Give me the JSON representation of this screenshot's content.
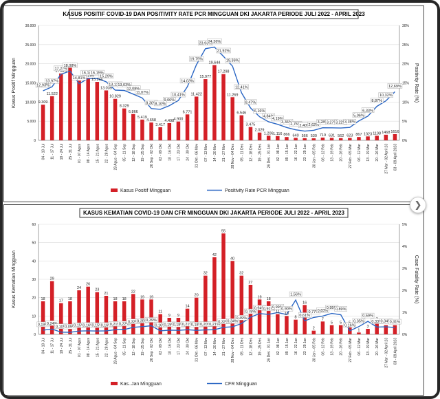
{
  "theme": {
    "bar_color": "#d42027",
    "line_color": "#2a66c4",
    "box_bg": "#ffffff"
  },
  "chart_data": [
    {
      "type": "bar",
      "title": "KASUS POSITIF COVID-19 DAN POSITIVITY RATE PCR MINGGUAN DKI JAKARTA PERIODE  JULI 2022 - APRIL 2023",
      "ylabel": "Kasus Positif Mingguan",
      "y2label": "Positivity Rate (%)",
      "ylim": [
        0,
        30000
      ],
      "y2lim": [
        0,
        30
      ],
      "yticks": [
        "0",
        "5.000",
        "10.000",
        "15.000",
        "20.000",
        "25.000",
        "30.000"
      ],
      "y2ticks": [
        "0%",
        "5%",
        "10%",
        "15%",
        "20%",
        "25%",
        "30%"
      ],
      "legend_position": "bottom",
      "categories": [
        "04 - 10 Jul",
        "11 - 17 Jul",
        "18 - 24 Jul",
        "25 - 31 Jul",
        "01 - 07 Agus",
        "08 - 14 Agus",
        "15 - 21 Agus",
        "22 - 28 Agus",
        "29 Agus - 04 Sep",
        "05 - 11 Sep",
        "12 - 18 Sep",
        "19 - 25 Sep",
        "26 Sep - 02 Okt",
        "03 - 09 Okt",
        "10 - 16 Okt",
        "17 - 23 Okt",
        "24 - 30 Okt",
        "31 Okt - 06 Nov",
        "07 - 13 Nov",
        "14 - 20 Nov",
        "21 - 27 Nov",
        "28 Nov - 04 Des",
        "05 - 11 Des",
        "12 - 18 Des",
        "19 - 25 Des",
        "26 Des - 01 Jan",
        "02 - 08 Jan",
        "09 - 15 Jan",
        "16 - 22 Jan",
        "23 - 29 Jan",
        "30 Jan - 05 Feb",
        "06 - 12 Feb",
        "13 - 19 Feb",
        "20 - 26 Feb",
        "27 Feb - 05 Mar",
        "06 - 12 Mar",
        "13 - 19 Mar",
        "20 - 26 Mar",
        "27 Mar - 02 April 23",
        "03 - 09 April 2023"
      ],
      "series": [
        {
          "name": "Kasus Positif Mingguan",
          "kind": "bar",
          "values": [
            9309,
            11522,
            17470,
            19192,
            15574,
            16294,
            15266,
            13035,
            10829,
            8329,
            6866,
            5419,
            4658,
            3417,
            4498,
            4900,
            6771,
            11422,
            15977,
            19644,
            17298,
            11269,
            6546,
            3475,
            2029,
            1206,
            1116,
            866,
            640,
            566,
            530,
            719,
            631,
            562,
            623,
            867,
            1023,
            1198,
            1468,
            1616
          ],
          "labels": [
            "9.309",
            "11.522",
            "17.470",
            "19.192",
            "15.574",
            "16.294",
            "15.266",
            "13.035",
            "10.829",
            "8.329",
            "6.866",
            "5.419",
            "4.658",
            "3.417",
            "4.498",
            "4.900",
            "6.771",
            "11.422",
            "15.977",
            "19.644",
            "17.298",
            "11.269",
            "6.546",
            "3.475",
            "2.029",
            "1.206",
            "1.116",
            "866",
            "640",
            "566",
            "530",
            "719",
            "631",
            "562",
            "623",
            "867",
            "1023",
            "1198",
            "1468",
            "1616"
          ]
        },
        {
          "name": "Positivity Rate PCR Mingguan",
          "kind": "line",
          "axis": "y2",
          "values": [
            12.93,
            13.97,
            17.27,
            18.08,
            14.81,
            16.14,
            16.15,
            15.29,
            13.12,
            13.03,
            12.08,
            11.07,
            8.3,
            8.1,
            9.06,
            10.41,
            14.03,
            19.75,
            23.93,
            24.36,
            21.92,
            19.36,
            12.41,
            8.47,
            6.16,
            4.84,
            4.19,
            3.36,
            2.75,
            2.4,
            2.62,
            3.28,
            3.27,
            3.22,
            3.38,
            5.06,
            6.33,
            8.87,
            10.32,
            12.69
          ],
          "labels": [
            "12,93%",
            "13,97%",
            "17,27%",
            "18,08%",
            "14,81%",
            "16,14%",
            "16,15%",
            "15,29%",
            "13,12%",
            "13,03%",
            "12,08%",
            "11,07%",
            "8,30%",
            "8,10%",
            "9,06%",
            "10,41%",
            "14,03%",
            "19,75%",
            "23,93%",
            "24,36%",
            "21,92%",
            "19,36%",
            "12,41%",
            "8,47%",
            "6,16%",
            "4,84%",
            "4,19%",
            "3,36%",
            "2,75%",
            "2,40%",
            "2,62%",
            "3,28%",
            "3,27%",
            "3,22%",
            "3,38%",
            "5,06%",
            "6,33%",
            "8,87%",
            "10,32%",
            "12,69%"
          ]
        }
      ]
    },
    {
      "type": "bar",
      "title": "KASUS KEMATIAN COVID-19 DAN CFR MINGGUAN DKI JAKARTA PERIODE  JULI 2022 - APRIL 2023",
      "ylabel": "Kasus Kematian Mingguan",
      "y2label": "Case Fatality Rate (%)",
      "ylim": [
        0,
        60
      ],
      "y2lim": [
        0,
        5
      ],
      "yticks": [
        "0",
        "10",
        "20",
        "30",
        "40",
        "50",
        "60"
      ],
      "y2ticks": [
        "0%",
        "1%",
        "2%",
        "3%",
        "4%",
        "5%"
      ],
      "legend_position": "bottom",
      "categories": [
        "04 - 10 Jul",
        "11 - 17 Jul",
        "18 - 24 Jul",
        "25 - 31 Jul",
        "01 - 07 Agus",
        "08 - 14 Agus",
        "15 - 21 Agus",
        "22 - 28 Agus",
        "29 Agus - 04 Sep",
        "05 - 11 Sep",
        "12 - 18 Sep",
        "19 - 25 Sep",
        "26 Sep - 02 Okt",
        "03 - 09 Okt",
        "10 - 16 Okt",
        "17 - 23 Okt",
        "24 - 30 Okt",
        "31 Okt - 06 Nov",
        "07 - 13 Nov",
        "14 - 20 Nov",
        "21 - 27 Nov",
        "28 Nov - 04 Des",
        "05 - 11 Des",
        "12 - 18 Des",
        "19 - 25 Des",
        "26 Des - 01 Jan",
        "02 - 08 Jan",
        "09 - 15 Jan",
        "16 - 22 Jan",
        "23 - 29 Jan",
        "30 Jan - 05 Feb",
        "06 - 12 Feb",
        "13 - 19 Feb",
        "20 - 26 Feb",
        "27 Feb - 05 Mar",
        "06 - 12 Mar",
        "13 - 19 Mar",
        "20 - 26 Mar",
        "27 Mar - 02 April 23",
        "03 - 09 April 2023"
      ],
      "series": [
        {
          "name": "Kasus Kematian Mingguan",
          "kind": "bar",
          "values": [
            18,
            29,
            17,
            18,
            24,
            26,
            23,
            21,
            18,
            18,
            22,
            19,
            19,
            11,
            9,
            9,
            14,
            20,
            32,
            42,
            55,
            40,
            32,
            27,
            19,
            18,
            11,
            10,
            8,
            16,
            2,
            7,
            5,
            5,
            5,
            1,
            3,
            7,
            5,
            5
          ],
          "labels": [
            "18",
            "29",
            "17",
            "18",
            "24",
            "26",
            "23",
            "21",
            "18",
            "18",
            "22",
            "19",
            "19",
            "11",
            "9",
            "9",
            "14",
            "20",
            "32",
            "42",
            "55",
            "40",
            "32",
            "27",
            "19",
            "18",
            "11",
            "10",
            "8",
            "16",
            "2",
            "7",
            "5",
            "5",
            "5",
            "1",
            "3",
            "7",
            "5",
            "5"
          ]
        },
        {
          "name": "CFR Mingguan",
          "kind": "line",
          "axis": "y2",
          "values": [
            0.19,
            0.24,
            0.1,
            0.09,
            0.15,
            0.16,
            0.15,
            0.16,
            0.21,
            0.22,
            0.32,
            0.35,
            0.39,
            0.16,
            0.19,
            0.18,
            0.21,
            0.18,
            0.2,
            0.21,
            0.32,
            0.34,
            0.49,
            0.78,
            0.94,
            0.91,
            0.99,
            0.9,
            1.56,
            0.61,
            0.77,
            0.83,
            0.95,
            0.89,
            0.16,
            0.35,
            0.59,
            0.33,
            0.34,
            0.31
          ],
          "labels": [
            "0,19%",
            "0,24%",
            "0,10%",
            "0,09%",
            "0,15%",
            "0,16%",
            "0,15%",
            "0,16%",
            "0,21%",
            "0,22%",
            "0,32%",
            "0,35%",
            "0,39%",
            "0,16%",
            "0,19%",
            "0,18%",
            "0,21%",
            "0,18%",
            "0,20%",
            "0,21%",
            "0,32%",
            "0,34%",
            "0,49%",
            "0,78%",
            "0,94%",
            "0,91%",
            "0,99%",
            "0,90%",
            "1,56%",
            "0,61%",
            "0,77%",
            "0,83%",
            "0,95%",
            "0,89%",
            "0,16%",
            "0,35%",
            "0,59%",
            "0,33%",
            "0,34%",
            "0,31%"
          ]
        }
      ]
    }
  ],
  "legend": {
    "top": {
      "bar_label": "Kasus Positif Mingguan",
      "line_label": "Positivity Rate PCR Mingguan"
    },
    "bottom": {
      "bar_label": "Kas..Jan Mingguan",
      "line_label": "CFR Mingguan"
    }
  },
  "carousel": {
    "next_glyph": "❯"
  }
}
